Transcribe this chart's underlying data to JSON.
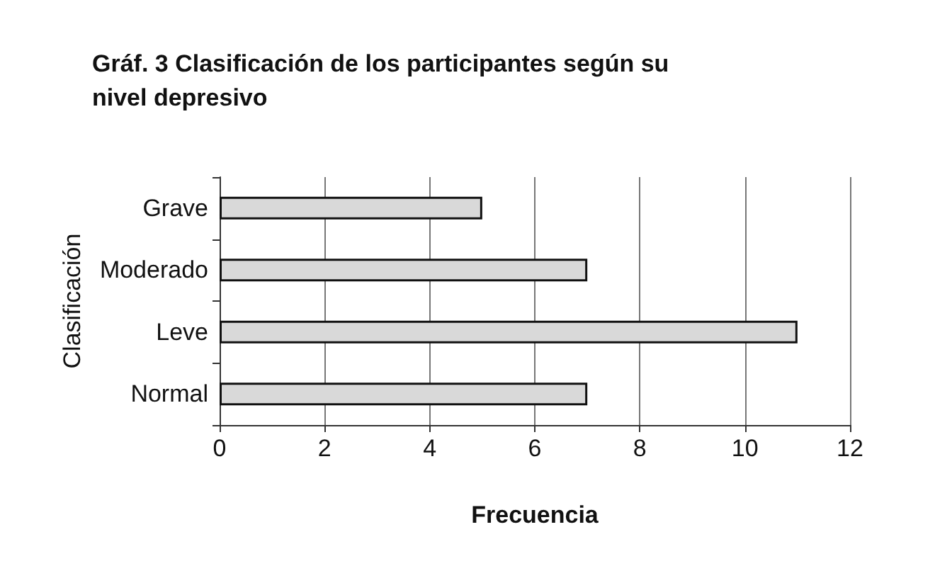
{
  "chart_data": {
    "type": "bar",
    "orientation": "horizontal",
    "title": "Gráf. 3 Clasificación de los participantes según su nivel depresivo",
    "xlabel": "Frecuencia",
    "ylabel": "Clasificación",
    "categories": [
      "Grave",
      "Moderado",
      "Leve",
      "Normal"
    ],
    "values": [
      5,
      7,
      11,
      7
    ],
    "color": "#d9d9d9",
    "xlim": [
      0,
      12
    ],
    "xticks": [
      0,
      2,
      4,
      6,
      8,
      10,
      12
    ],
    "grid": "x"
  }
}
